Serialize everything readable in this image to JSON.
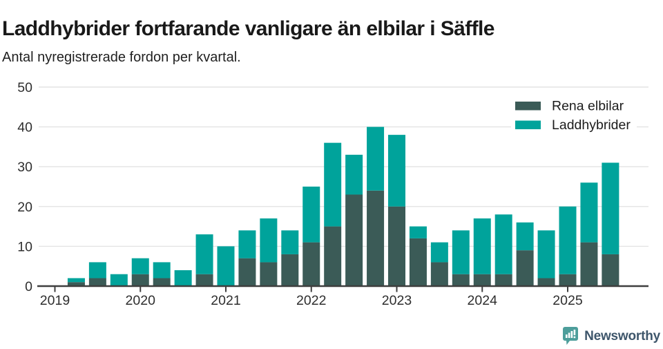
{
  "header": {
    "title": "Laddhybrider fortfarande vanligare än elbilar i Säffle",
    "subtitle": "Antal nyregistrerade fordon per kvartal."
  },
  "legend": {
    "items": [
      {
        "label": "Rena elbilar",
        "color": "#3B5B57"
      },
      {
        "label": "Laddhybrider",
        "color": "#00A39B"
      }
    ]
  },
  "footer": {
    "brand": "Newsworthy",
    "icon": "newsworthy-speech-bubble-chart-icon",
    "icon_color": "#4D9E9B",
    "text_color": "#3E566B"
  },
  "colors": {
    "axis": "#3E3E3E",
    "gridline": "#E3E3E3",
    "tick_label": "#2E2E2E"
  },
  "chart_data": {
    "type": "bar",
    "stacked": true,
    "title": "Laddhybrider fortfarande vanligare än elbilar i Säffle",
    "subtitle": "Antal nyregistrerade fordon per kvartal.",
    "grid": "horizontal",
    "legend_position": "top-right",
    "ylim": [
      0,
      50
    ],
    "y_ticks": [
      0,
      10,
      20,
      30,
      40,
      50
    ],
    "x_year_ticks": [
      "2019",
      "2020",
      "2021",
      "2022",
      "2023",
      "2024",
      "2025"
    ],
    "categories": [
      "2019 Q1",
      "2019 Q2",
      "2019 Q3",
      "2019 Q4",
      "2020 Q1",
      "2020 Q2",
      "2020 Q3",
      "2020 Q4",
      "2021 Q1",
      "2021 Q2",
      "2021 Q3",
      "2021 Q4",
      "2022 Q1",
      "2022 Q2",
      "2022 Q3",
      "2022 Q4",
      "2023 Q1",
      "2023 Q2",
      "2023 Q3",
      "2023 Q4",
      "2024 Q1",
      "2024 Q2",
      "2024 Q3",
      "2024 Q4",
      "2025 Q1",
      "2025 Q2",
      "2025 Q3"
    ],
    "series": [
      {
        "name": "Rena elbilar",
        "color": "#3B5B57",
        "values": [
          0,
          1,
          2,
          0,
          3,
          2,
          0,
          3,
          0,
          7,
          6,
          8,
          11,
          15,
          23,
          24,
          20,
          12,
          6,
          3,
          3,
          3,
          9,
          2,
          3,
          11,
          8
        ]
      },
      {
        "name": "Laddhybrider",
        "color": "#00A39B",
        "values": [
          0,
          1,
          4,
          3,
          4,
          4,
          4,
          10,
          10,
          7,
          11,
          6,
          14,
          21,
          10,
          16,
          18,
          3,
          5,
          11,
          14,
          15,
          7,
          12,
          17,
          15,
          23
        ]
      }
    ],
    "totals": [
      0,
      2,
      6,
      3,
      7,
      6,
      4,
      13,
      10,
      14,
      17,
      14,
      25,
      36,
      33,
      40,
      38,
      15,
      11,
      14,
      17,
      18,
      16,
      14,
      20,
      26,
      31
    ]
  }
}
